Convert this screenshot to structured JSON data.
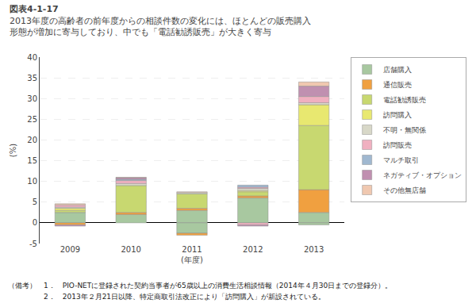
{
  "chart_data": {
    "type": "bar",
    "title": "図表4-1-17",
    "subtitle": [
      "2013年度の高齢者の前年度からの相談件数の変化には、ほとんどの販売購入",
      "形態が増加に寄与しており、中でも「電話勧誘販売」が大きく寄与"
    ],
    "annotations": [
      "（備考）　1．　PIO-NETに登録された契約当事者が65歳以上の消費生活相談情報（2014年４月30日までの登録分）。",
      "　　　　　2．　2013年２月21日以降、特定商取引法改正により「訪問購入」が新設されている。"
    ],
    "xlabel": "(年度)",
    "ylabel": "(%)",
    "categories": [
      "2009",
      "2010",
      "2011",
      "2012",
      "2013"
    ],
    "series": [
      {
        "name": "店舗購入",
        "color": "#a8c8a0",
        "values": [
          2.5,
          2.0,
          3.0,
          6.0,
          2.5
        ],
        "negative_values": [
          0.0,
          0.0,
          -2.5,
          0.0,
          -0.5
        ]
      },
      {
        "name": "通信販売",
        "color": "#f0a040",
        "values": [
          0.0,
          0.5,
          0.5,
          0.5,
          5.5
        ],
        "negative_values": [
          -0.5,
          0.0,
          -0.5,
          0.0,
          0.0
        ]
      },
      {
        "name": "電話勧誘販売",
        "color": "#c8d870",
        "values": [
          0.5,
          6.5,
          3.5,
          1.0,
          15.5
        ],
        "negative_values": [
          0.0,
          0.0,
          0.0,
          0.0,
          0.0
        ]
      },
      {
        "name": "訪問購入",
        "color": "#e8e870",
        "values": [
          0.5,
          0.0,
          0.0,
          0.3,
          5.0
        ],
        "negative_values": [
          0.0,
          0.0,
          0.0,
          0.0,
          0.0
        ]
      },
      {
        "name": "不明・無関係",
        "color": "#d8d8c8",
        "values": [
          0.3,
          0.5,
          0.3,
          0.5,
          0.5
        ],
        "negative_values": [
          0.0,
          0.0,
          0.0,
          0.0,
          0.0
        ]
      },
      {
        "name": "訪問販売",
        "color": "#f0b0c0",
        "values": [
          0.5,
          0.7,
          0.0,
          0.3,
          1.5
        ],
        "negative_values": [
          0.0,
          0.0,
          0.0,
          -0.5,
          0.0
        ]
      },
      {
        "name": "マルチ取引",
        "color": "#a0b8d0",
        "values": [
          0.0,
          0.3,
          0.0,
          0.5,
          0.0
        ],
        "negative_values": [
          0.0,
          0.0,
          0.0,
          0.0,
          0.0
        ]
      },
      {
        "name": "ネガティブ・オプション",
        "color": "#c090b0",
        "values": [
          0.0,
          0.4,
          0.0,
          0.0,
          2.5
        ],
        "negative_values": [
          -0.3,
          0.0,
          0.0,
          -0.3,
          0.0
        ]
      },
      {
        "name": "その他無店舗",
        "color": "#f0c8b0",
        "values": [
          0.3,
          0.1,
          0.2,
          0.0,
          1.0
        ],
        "negative_values": [
          0.0,
          0.0,
          0.0,
          0.0,
          0.0
        ]
      }
    ],
    "stacked": true,
    "ylim": [
      -5,
      40
    ],
    "yticks": [
      -5,
      0,
      5,
      10,
      15,
      20,
      25,
      30,
      35,
      40
    ],
    "grid": true,
    "legend": "right"
  }
}
